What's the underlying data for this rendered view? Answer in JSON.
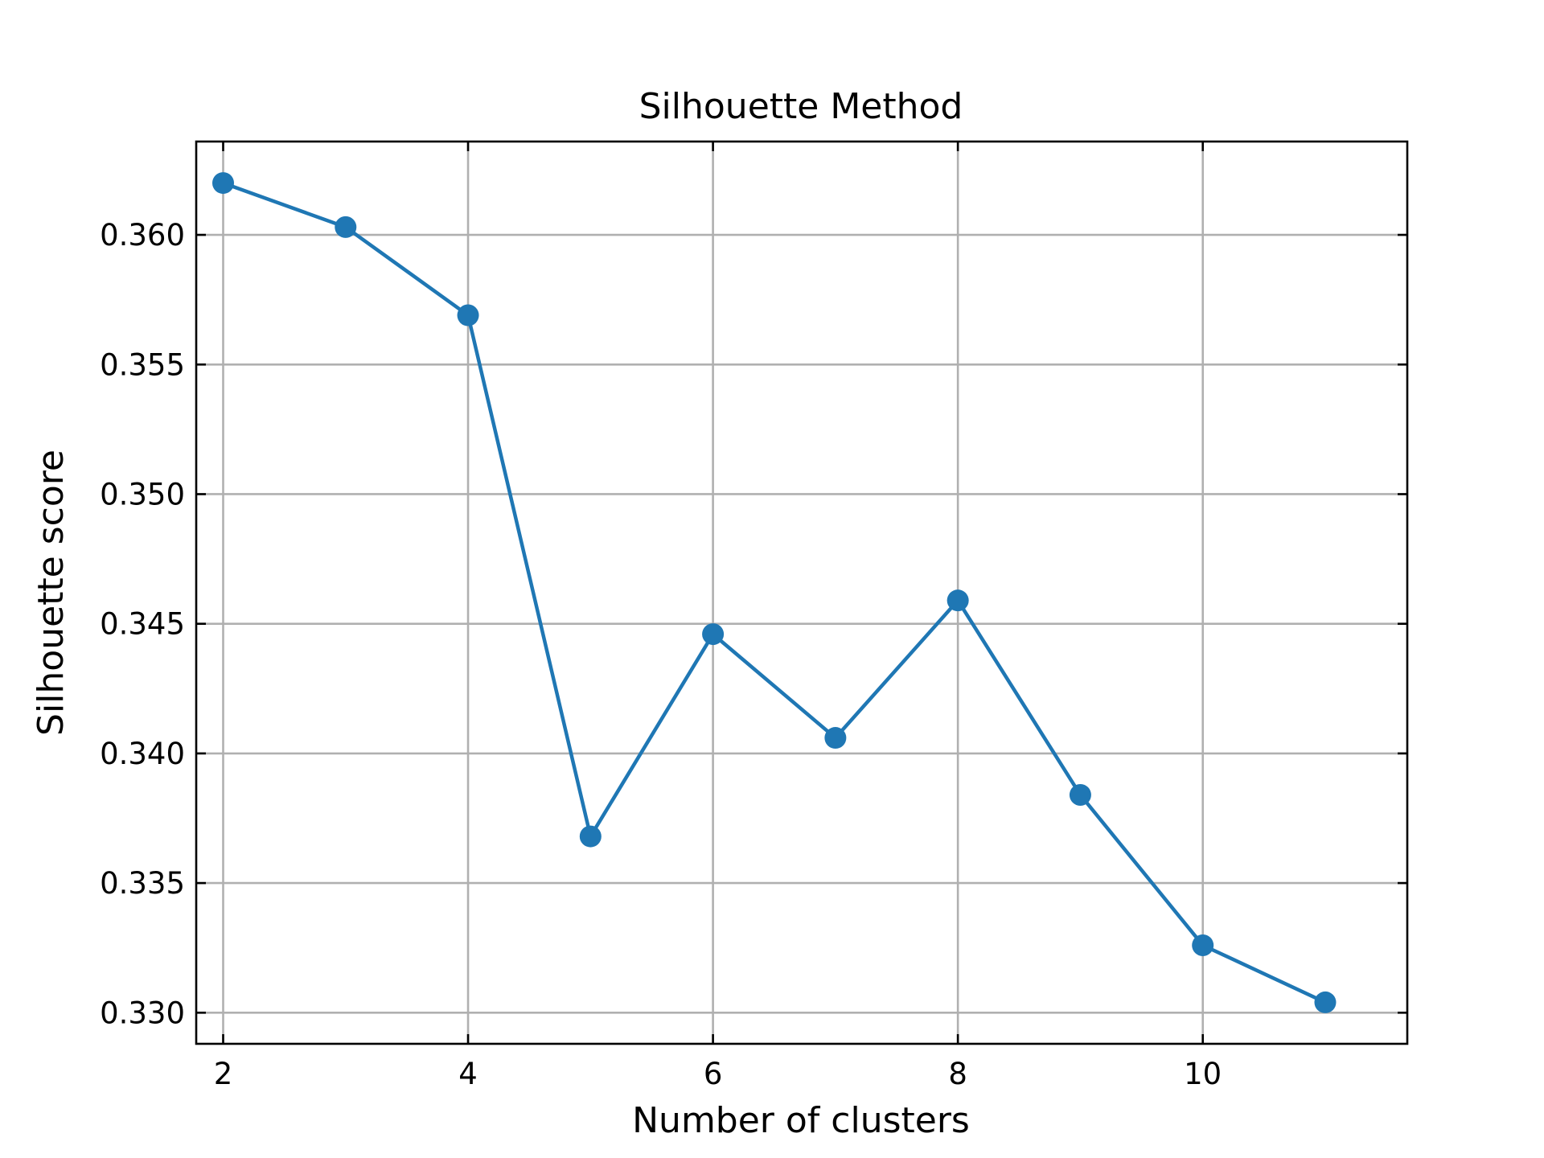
{
  "chart_data": {
    "type": "line",
    "title": "Silhouette Method",
    "xlabel": "Number of clusters",
    "ylabel": "Silhouette score",
    "x": [
      2,
      3,
      4,
      5,
      6,
      7,
      8,
      9,
      10,
      11
    ],
    "series": [
      {
        "values": [
          0.362,
          0.3603,
          0.3569,
          0.3368,
          0.3446,
          0.3406,
          0.3459,
          0.3384,
          0.3326,
          0.3304
        ],
        "color": "#1f77b4",
        "marker": "circle"
      }
    ],
    "xticks": [
      2,
      4,
      6,
      8,
      10
    ],
    "xtick_labels": [
      "2",
      "4",
      "6",
      "8",
      "10"
    ],
    "yticks": [
      0.33,
      0.335,
      0.34,
      0.345,
      0.35,
      0.355,
      0.36
    ],
    "ytick_labels": [
      "0.330",
      "0.335",
      "0.340",
      "0.345",
      "0.350",
      "0.355",
      "0.360"
    ],
    "xlim": [
      1.78,
      11.67
    ],
    "ylim": [
      0.3288,
      0.3636
    ],
    "grid": true,
    "tick_direction": "in",
    "ticks_on_all_sides": true
  }
}
